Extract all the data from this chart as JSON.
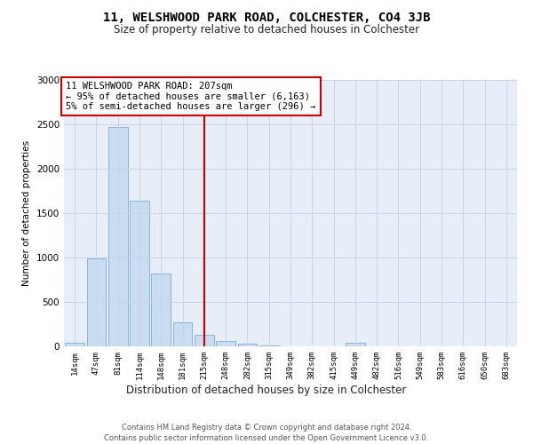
{
  "title": "11, WELSHWOOD PARK ROAD, COLCHESTER, CO4 3JB",
  "subtitle": "Size of property relative to detached houses in Colchester",
  "xlabel": "Distribution of detached houses by size in Colchester",
  "ylabel": "Number of detached properties",
  "categories": [
    "14sqm",
    "47sqm",
    "81sqm",
    "114sqm",
    "148sqm",
    "181sqm",
    "215sqm",
    "248sqm",
    "282sqm",
    "315sqm",
    "349sqm",
    "382sqm",
    "415sqm",
    "449sqm",
    "482sqm",
    "516sqm",
    "549sqm",
    "583sqm",
    "616sqm",
    "650sqm",
    "683sqm"
  ],
  "values": [
    40,
    990,
    2470,
    1640,
    820,
    270,
    130,
    60,
    30,
    15,
    5,
    2,
    0,
    40,
    0,
    0,
    0,
    0,
    0,
    0,
    0
  ],
  "bar_color": "#c9ddf2",
  "bar_edge_color": "#7bafd4",
  "vline_index": 6,
  "annotation_text": "11 WELSHWOOD PARK ROAD: 207sqm\n← 95% of detached houses are smaller (6,163)\n5% of semi-detached houses are larger (296) →",
  "annotation_box_facecolor": "#ffffff",
  "annotation_box_edgecolor": "#cc0000",
  "vline_color": "#cc0000",
  "ylim": [
    0,
    3000
  ],
  "yticks": [
    0,
    500,
    1000,
    1500,
    2000,
    2500,
    3000
  ],
  "grid_color": "#c8d4e8",
  "background_color": "#e8eef8",
  "footer_line1": "Contains HM Land Registry data © Crown copyright and database right 2024.",
  "footer_line2": "Contains public sector information licensed under the Open Government Licence v3.0."
}
